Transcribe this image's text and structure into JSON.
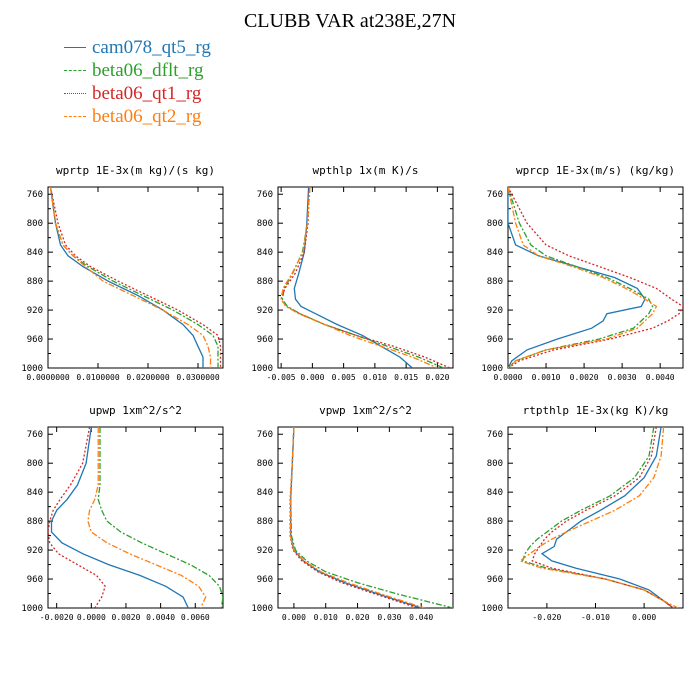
{
  "title": "CLUBB VAR at238E,27N",
  "legend": [
    {
      "label": "cam078_qt5_rg",
      "color": "#1f77b4",
      "dash": "solid"
    },
    {
      "label": "beta06_dflt_rg",
      "color": "#2ca02c",
      "dash": "dashdot"
    },
    {
      "label": "beta06_qt1_rg",
      "color": "#d62728",
      "dash": "dot"
    },
    {
      "label": "beta06_qt2_rg",
      "color": "#ff7f0e",
      "dash": "dashdot"
    }
  ],
  "chart_data": [
    {
      "type": "line",
      "title": "wprtp 1E-3x(m kg)/(s kg)",
      "xlim": [
        0.0,
        0.035
      ],
      "ylim": [
        1000,
        750
      ],
      "xticks": [
        0.0,
        0.01,
        0.02,
        0.03
      ],
      "xtick_labels": [
        "0.0000000",
        "0.0100000",
        "0.0200000",
        "0.0300000"
      ],
      "yticks": [
        760,
        800,
        840,
        880,
        920,
        960,
        1000
      ],
      "y": [
        750,
        800,
        830,
        845,
        860,
        880,
        900,
        920,
        940,
        955,
        970,
        985,
        1000
      ],
      "series": [
        {
          "name": "cam078_qt5_rg",
          "values": [
            0.0005,
            0.0015,
            0.0025,
            0.004,
            0.007,
            0.012,
            0.018,
            0.023,
            0.027,
            0.029,
            0.03,
            0.031,
            0.031
          ]
        },
        {
          "name": "beta06_dflt_rg",
          "values": [
            0.0005,
            0.0015,
            0.003,
            0.005,
            0.008,
            0.013,
            0.019,
            0.025,
            0.03,
            0.033,
            0.034,
            0.034,
            0.034
          ]
        },
        {
          "name": "beta06_qt1_rg",
          "values": [
            0.0005,
            0.002,
            0.0035,
            0.0055,
            0.0085,
            0.014,
            0.02,
            0.026,
            0.031,
            0.034,
            0.0345,
            0.0345,
            0.0345
          ]
        },
        {
          "name": "beta06_qt2_rg",
          "values": [
            0.0005,
            0.0015,
            0.003,
            0.005,
            0.0075,
            0.011,
            0.017,
            0.023,
            0.028,
            0.031,
            0.032,
            0.0325,
            0.0325
          ]
        }
      ]
    },
    {
      "type": "line",
      "title": "wpthlp 1x(m K)/s",
      "xlim": [
        -0.0055,
        0.0225
      ],
      "ylim": [
        1000,
        750
      ],
      "xticks": [
        -0.005,
        0.0,
        0.005,
        0.01,
        0.015,
        0.02
      ],
      "xtick_labels": [
        "-0.005",
        "0.000",
        "0.005",
        "0.010",
        "0.015",
        "0.020"
      ],
      "yticks": [
        760,
        800,
        840,
        880,
        920,
        960,
        1000
      ],
      "y": [
        750,
        800,
        840,
        870,
        890,
        905,
        915,
        925,
        940,
        955,
        970,
        985,
        1000
      ],
      "series": [
        {
          "name": "cam078_qt5_rg",
          "values": [
            -0.0006,
            -0.0009,
            -0.0013,
            -0.0022,
            -0.0029,
            -0.0027,
            -0.0018,
            0.0005,
            0.004,
            0.008,
            0.011,
            0.014,
            0.016
          ]
        },
        {
          "name": "beta06_dflt_rg",
          "values": [
            -0.0004,
            -0.0008,
            -0.0016,
            -0.0032,
            -0.0045,
            -0.0048,
            -0.004,
            -0.002,
            0.002,
            0.007,
            0.012,
            0.017,
            0.021
          ]
        },
        {
          "name": "beta06_qt1_rg",
          "values": [
            -0.0005,
            -0.0007,
            -0.0013,
            -0.0028,
            -0.0044,
            -0.005,
            -0.0042,
            -0.002,
            0.002,
            0.007,
            0.013,
            0.018,
            0.022
          ]
        },
        {
          "name": "beta06_qt2_rg",
          "values": [
            -0.0004,
            -0.0008,
            -0.0015,
            -0.0033,
            -0.0047,
            -0.005,
            -0.0042,
            -0.0022,
            0.002,
            0.006,
            0.011,
            0.016,
            0.02
          ]
        }
      ]
    },
    {
      "type": "line",
      "title": "wprcp 1E-3x(m/s) (kg/kg)",
      "xlim": [
        0.0,
        0.0046
      ],
      "ylim": [
        1000,
        750
      ],
      "xticks": [
        0.0,
        0.001,
        0.002,
        0.003,
        0.004
      ],
      "xtick_labels": [
        "0.0000",
        "0.0010",
        "0.0020",
        "0.0030",
        "0.0040"
      ],
      "yticks": [
        760,
        800,
        840,
        880,
        920,
        960,
        1000
      ],
      "y": [
        750,
        800,
        830,
        845,
        860,
        875,
        890,
        905,
        915,
        925,
        935,
        945,
        960,
        975,
        990,
        1000
      ],
      "series": [
        {
          "name": "cam078_qt5_rg",
          "values": [
            0.0,
            0.0,
            0.0002,
            0.0008,
            0.0018,
            0.0028,
            0.0034,
            0.0036,
            0.0035,
            0.0026,
            0.0025,
            0.0022,
            0.0013,
            0.0005,
            0.0001,
            0.0
          ]
        },
        {
          "name": "beta06_dflt_rg",
          "values": [
            0.0,
            0.0003,
            0.0006,
            0.001,
            0.0018,
            0.0026,
            0.0032,
            0.0037,
            0.0038,
            0.0037,
            0.0035,
            0.0033,
            0.0024,
            0.001,
            0.0002,
            0.0
          ]
        },
        {
          "name": "beta06_qt1_rg",
          "values": [
            0.0,
            0.0005,
            0.001,
            0.0016,
            0.0024,
            0.0032,
            0.0039,
            0.0043,
            0.0046,
            0.0045,
            0.0042,
            0.0038,
            0.0027,
            0.0012,
            0.0003,
            0.0
          ]
        },
        {
          "name": "beta06_qt2_rg",
          "values": [
            0.0,
            0.0002,
            0.0004,
            0.0008,
            0.0017,
            0.0025,
            0.0031,
            0.0036,
            0.0039,
            0.0038,
            0.0036,
            0.0034,
            0.0026,
            0.001,
            0.0002,
            0.0
          ]
        }
      ]
    },
    {
      "type": "line",
      "title": "upwp 1xm^2/s^2",
      "xlim": [
        -0.0025,
        0.0076
      ],
      "ylim": [
        1000,
        750
      ],
      "xticks": [
        -0.002,
        0.0,
        0.002,
        0.004,
        0.006
      ],
      "xtick_labels": [
        "-0.0020",
        "0.0000",
        "0.0020",
        "0.0040",
        "0.0060"
      ],
      "yticks": [
        760,
        800,
        840,
        880,
        920,
        960,
        1000
      ],
      "y": [
        750,
        800,
        830,
        850,
        865,
        880,
        895,
        910,
        925,
        940,
        955,
        970,
        985,
        1000
      ],
      "series": [
        {
          "name": "cam078_qt5_rg",
          "values": [
            0.0,
            -0.0003,
            -0.0008,
            -0.0014,
            -0.002,
            -0.0023,
            -0.0023,
            -0.0017,
            -0.0005,
            0.001,
            0.0028,
            0.0043,
            0.0053,
            0.0056
          ]
        },
        {
          "name": "beta06_dflt_rg",
          "values": [
            0.0005,
            0.0005,
            0.0005,
            0.0004,
            0.0006,
            0.0009,
            0.0017,
            0.0029,
            0.0043,
            0.0057,
            0.0068,
            0.0074,
            0.0076,
            0.0075
          ]
        },
        {
          "name": "beta06_qt1_rg",
          "values": [
            -0.0001,
            -0.0005,
            -0.0012,
            -0.0018,
            -0.0022,
            -0.0024,
            -0.0025,
            -0.0024,
            -0.0019,
            -0.0008,
            0.0003,
            0.0008,
            0.0006,
            0.0002
          ]
        },
        {
          "name": "beta06_qt2_rg",
          "values": [
            0.0004,
            0.0004,
            0.0004,
            0.0002,
            -0.0001,
            -0.0002,
            0.0,
            0.0009,
            0.0022,
            0.0037,
            0.0052,
            0.0062,
            0.0066,
            0.0063
          ]
        }
      ]
    },
    {
      "type": "line",
      "title": "vpwp 1xm^2/s^2",
      "xlim": [
        -0.005,
        0.05
      ],
      "ylim": [
        1000,
        750
      ],
      "xticks": [
        0.0,
        0.01,
        0.02,
        0.03,
        0.04
      ],
      "xtick_labels": [
        "0.000",
        "0.010",
        "0.020",
        "0.030",
        "0.040"
      ],
      "yticks": [
        760,
        800,
        840,
        880,
        920,
        960,
        1000
      ],
      "y": [
        750,
        800,
        850,
        900,
        920,
        935,
        950,
        965,
        980,
        990,
        1000
      ],
      "series": [
        {
          "name": "cam078_qt5_rg",
          "values": [
            0.0,
            -0.0005,
            -0.001,
            -0.001,
            0.0,
            0.003,
            0.008,
            0.016,
            0.026,
            0.033,
            0.04
          ]
        },
        {
          "name": "beta06_dflt_rg",
          "values": [
            0.0,
            -0.0005,
            -0.001,
            -0.0008,
            0.0005,
            0.004,
            0.01,
            0.02,
            0.032,
            0.041,
            0.05
          ]
        },
        {
          "name": "beta06_qt1_rg",
          "values": [
            0.0,
            -0.0005,
            -0.0012,
            -0.0012,
            -0.0003,
            0.0025,
            0.0075,
            0.015,
            0.025,
            0.032,
            0.039
          ]
        },
        {
          "name": "beta06_qt2_rg",
          "values": [
            0.0,
            -0.0005,
            -0.0011,
            -0.0011,
            0.0,
            0.0032,
            0.0085,
            0.017,
            0.027,
            0.034,
            0.041
          ]
        }
      ]
    },
    {
      "type": "line",
      "title": "rtpthlp 1E-3x(kg K)/kg",
      "xlim": [
        -0.028,
        0.008
      ],
      "ylim": [
        1000,
        750
      ],
      "xticks": [
        -0.02,
        -0.01,
        0.0
      ],
      "xtick_labels": [
        "-0.020",
        "-0.010",
        "0.000"
      ],
      "yticks": [
        760,
        800,
        840,
        880,
        920,
        960,
        1000
      ],
      "y": [
        750,
        790,
        820,
        845,
        865,
        880,
        895,
        905,
        915,
        925,
        935,
        945,
        960,
        975,
        990,
        1000
      ],
      "series": [
        {
          "name": "cam078_qt5_rg",
          "values": [
            0.0035,
            0.0025,
            0.0,
            -0.004,
            -0.009,
            -0.013,
            -0.016,
            -0.018,
            -0.0185,
            -0.021,
            -0.019,
            -0.014,
            -0.005,
            0.001,
            0.004,
            0.006
          ]
        },
        {
          "name": "beta06_dflt_rg",
          "values": [
            0.002,
            0.001,
            -0.002,
            -0.007,
            -0.013,
            -0.017,
            -0.02,
            -0.022,
            -0.0235,
            -0.0245,
            -0.025,
            -0.02,
            -0.008,
            0.0,
            0.004,
            0.006
          ]
        },
        {
          "name": "beta06_qt1_rg",
          "values": [
            0.0025,
            0.0015,
            -0.001,
            -0.006,
            -0.012,
            -0.016,
            -0.019,
            -0.0205,
            -0.0215,
            -0.0225,
            -0.023,
            -0.019,
            -0.008,
            0.0,
            0.004,
            0.006
          ]
        },
        {
          "name": "beta06_qt2_rg",
          "values": [
            0.004,
            0.0035,
            0.002,
            -0.001,
            -0.006,
            -0.011,
            -0.016,
            -0.019,
            -0.0215,
            -0.0235,
            -0.0255,
            -0.021,
            -0.008,
            0.0,
            0.004,
            0.007
          ]
        }
      ]
    }
  ]
}
